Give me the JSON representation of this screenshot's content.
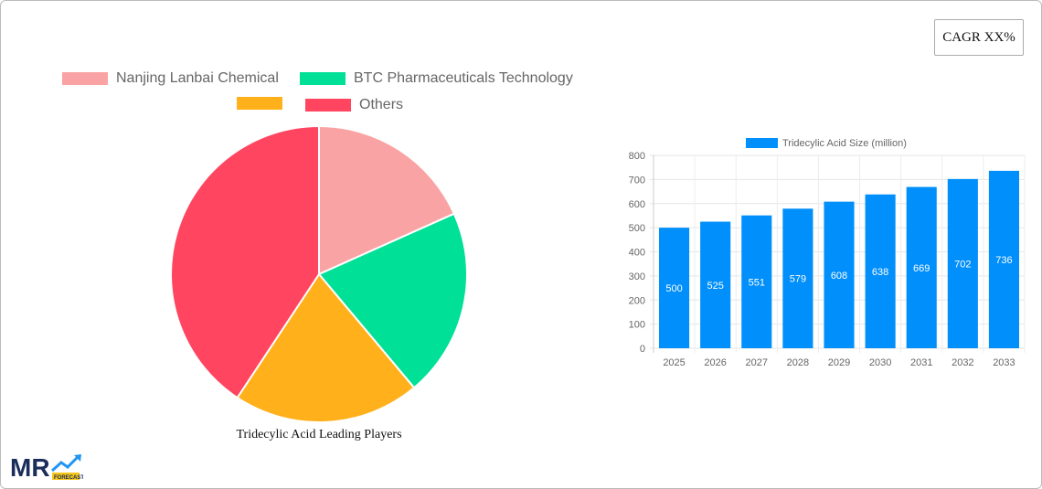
{
  "cagr_label": "CAGR XX%",
  "chart_data": [
    {
      "type": "pie",
      "title": "Tridecylic Acid Leading Players",
      "legend_position": "top",
      "slices": [
        {
          "name": "Nanjing Lanbai Chemical",
          "value": 18.3,
          "color": "#f9a3a4"
        },
        {
          "name": "BTC Pharmaceuticals Technology",
          "value": 20.6,
          "color": "#00e096"
        },
        {
          "name": "",
          "value": 20.4,
          "color": "#ffb01a"
        },
        {
          "name": "Others",
          "value": 40.7,
          "color": "#ff4560"
        }
      ]
    },
    {
      "type": "bar",
      "legend_position": "top",
      "grid": true,
      "categories": [
        "2025",
        "2026",
        "2027",
        "2028",
        "2029",
        "2030",
        "2031",
        "2032",
        "2033"
      ],
      "series": [
        {
          "name": "Tridecylic Acid Size (million)",
          "values": [
            500,
            525,
            551,
            579,
            608,
            638,
            669,
            702,
            736
          ],
          "color": "#008ffb"
        }
      ],
      "ylim": [
        0,
        800
      ],
      "yticks": [
        0,
        100,
        200,
        300,
        400,
        500,
        600,
        700,
        800
      ]
    }
  ]
}
